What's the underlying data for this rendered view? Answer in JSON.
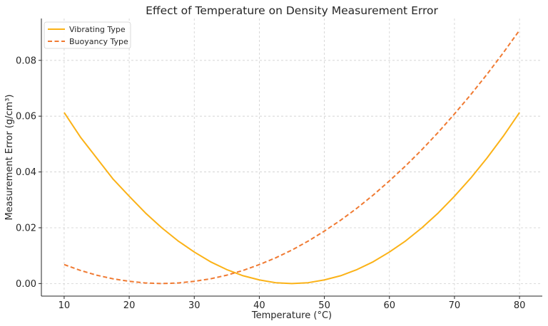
{
  "chart_data": {
    "type": "line",
    "title": "Effect of Temperature on Density Measurement Error",
    "xlabel": "Temperature (°C)",
    "ylabel": "Measurement Error (g/cm³)",
    "xlim": [
      6.5,
      83.5
    ],
    "ylim": [
      -0.0045,
      0.095
    ],
    "xticks": [
      10,
      20,
      30,
      40,
      50,
      60,
      70,
      80
    ],
    "yticks": [
      0.0,
      0.02,
      0.04,
      0.06,
      0.08
    ],
    "ytick_labels": [
      "0.00",
      "0.02",
      "0.04",
      "0.06",
      "0.08"
    ],
    "grid": true,
    "legend_position": "top-left",
    "series": [
      {
        "name": "Vibrating Type",
        "style": "solid",
        "color": "#fbb217",
        "x": [
          10,
          12.5,
          15,
          17.5,
          20,
          22.5,
          25,
          27.5,
          30,
          32.5,
          35,
          37.5,
          40,
          42.5,
          45,
          47.5,
          50,
          52.5,
          55,
          57.5,
          60,
          62.5,
          65,
          67.5,
          70,
          72.5,
          75,
          77.5,
          80
        ],
        "y": [
          0.0613,
          0.0525,
          0.045,
          0.0375,
          0.0313,
          0.0253,
          0.02,
          0.0153,
          0.0113,
          0.0078,
          0.005,
          0.0028,
          0.0013,
          0.0003,
          0.0,
          0.0003,
          0.0013,
          0.0028,
          0.005,
          0.0078,
          0.0113,
          0.0153,
          0.02,
          0.0253,
          0.0313,
          0.0378,
          0.045,
          0.0528,
          0.0613
        ]
      },
      {
        "name": "Buoyancy Type",
        "style": "dashed",
        "color": "#f07a32",
        "x": [
          10,
          12.5,
          15,
          17.5,
          20,
          22.5,
          25,
          27.5,
          30,
          32.5,
          35,
          37.5,
          40,
          42.5,
          45,
          47.5,
          50,
          52.5,
          55,
          57.5,
          60,
          62.5,
          65,
          67.5,
          70,
          72.5,
          75,
          77.5,
          80
        ],
        "y": [
          0.0068,
          0.0047,
          0.003,
          0.0017,
          0.0008,
          0.0002,
          0.0,
          0.0002,
          0.0008,
          0.0017,
          0.003,
          0.0047,
          0.0068,
          0.0092,
          0.012,
          0.0152,
          0.0188,
          0.0227,
          0.027,
          0.0317,
          0.0368,
          0.0422,
          0.048,
          0.0542,
          0.0608,
          0.0677,
          0.075,
          0.0827,
          0.0908
        ]
      }
    ]
  }
}
